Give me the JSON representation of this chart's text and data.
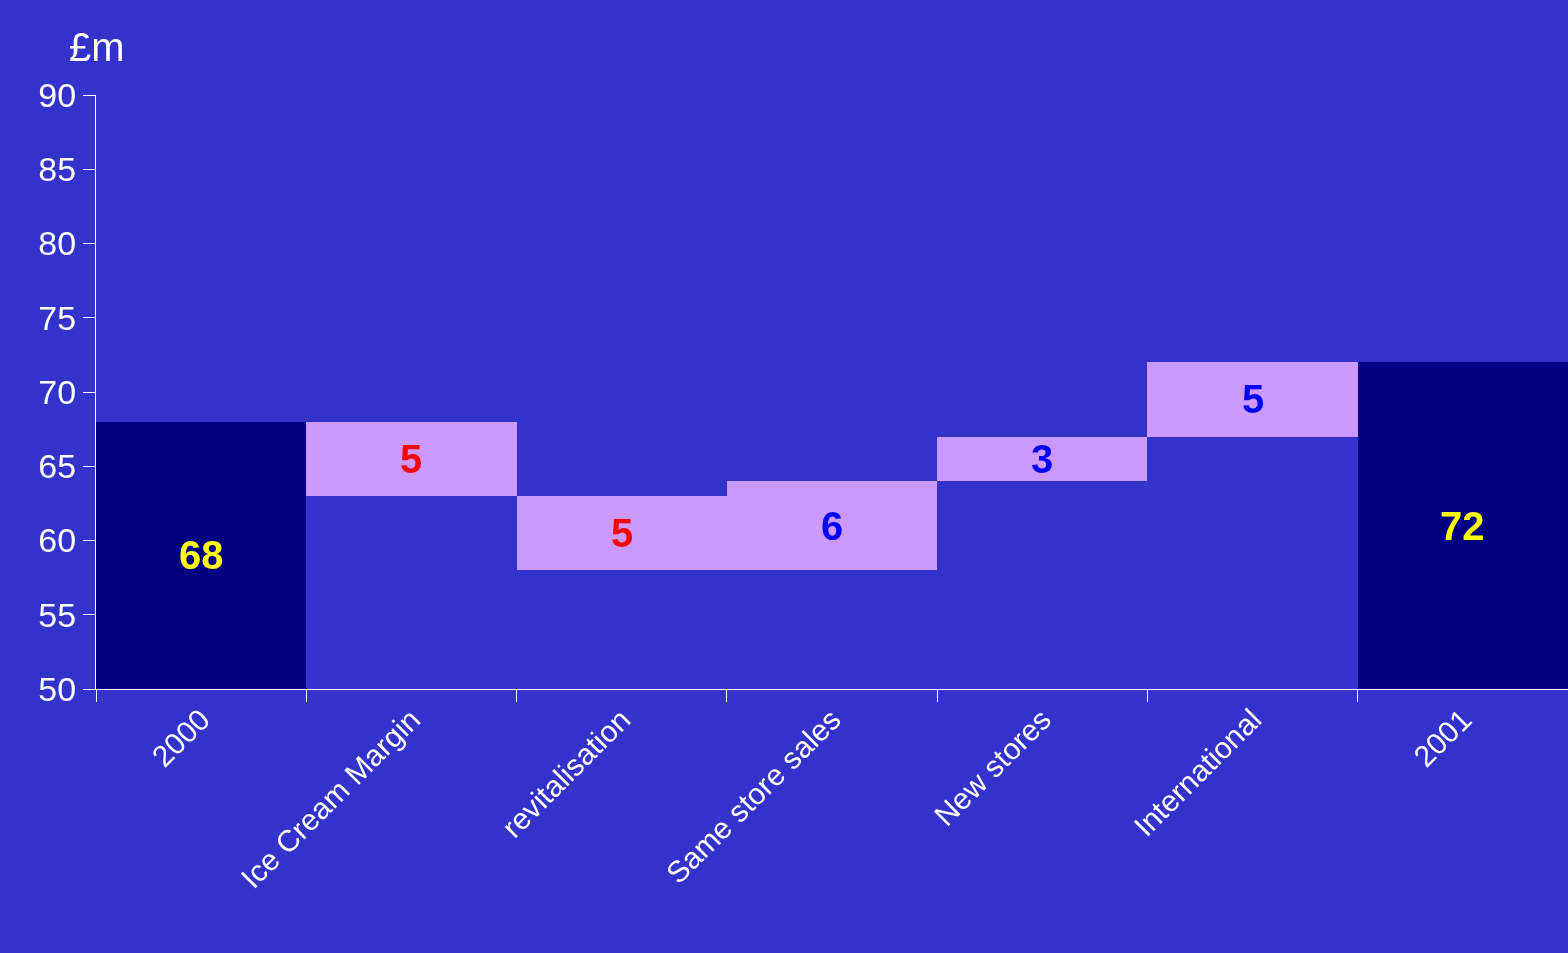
{
  "chart_data": {
    "type": "bar",
    "ylabel": "£m",
    "categories": [
      "2000",
      "Ice Cream Margin",
      "revitalisation",
      "Same store sales",
      "New stores",
      "International",
      "2001"
    ],
    "values": [
      68,
      -5,
      -5,
      6,
      3,
      5,
      72
    ],
    "base": [
      null,
      68,
      63,
      58,
      64,
      67,
      null
    ],
    "colors": [
      "#000080",
      "#cc99ff",
      "#cc99ff",
      "#cc99ff",
      "#cc99ff",
      "#cc99ff",
      "#000080"
    ],
    "value_labels": [
      "68",
      "5",
      "5",
      "6",
      "3",
      "5",
      "72"
    ],
    "ylim": [
      50,
      90
    ],
    "yticks": [
      50,
      55,
      60,
      65,
      70,
      75,
      80,
      85,
      90
    ],
    "grid": false,
    "legend": false
  }
}
